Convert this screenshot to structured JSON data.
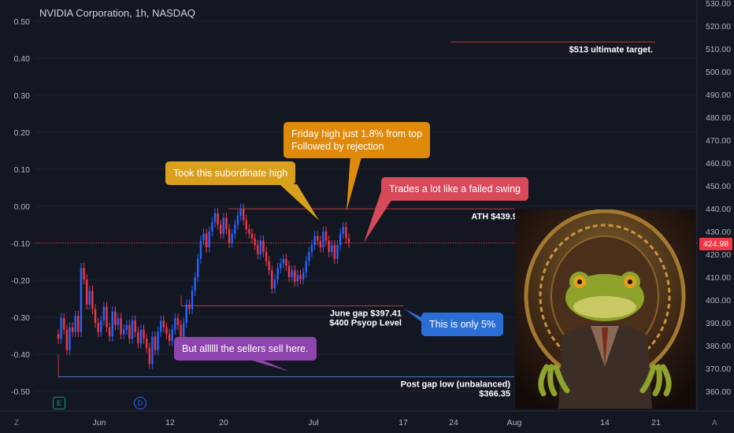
{
  "header": {
    "title": "NVIDIA Corporation, 1h, NASDAQ"
  },
  "colors": {
    "bg": "#131722",
    "up": "#2962ff",
    "down": "#f23645",
    "grid": "#1e222d"
  },
  "chart_data": {
    "type": "candlestick",
    "left_axis": {
      "ticks": [
        "0.50",
        "0.40",
        "0.30",
        "0.20",
        "0.10",
        "0.00",
        "-0.10",
        "-0.20",
        "-0.30",
        "-0.40",
        "-0.50"
      ]
    },
    "right_axis": {
      "ticks": [
        "530.00",
        "520.00",
        "510.00",
        "500.00",
        "490.00",
        "480.00",
        "470.00",
        "460.00",
        "450.00",
        "440.00",
        "430.00",
        "420.00",
        "410.00",
        "400.00",
        "390.00",
        "380.00",
        "370.00",
        "360.00"
      ],
      "ylim": [
        355,
        532
      ],
      "current_price": "424.98"
    },
    "x_axis": {
      "ticks": [
        "Jun",
        "12",
        "20",
        "Jul",
        "17",
        "24",
        "Aug",
        "14",
        "21"
      ]
    },
    "series": [
      {
        "name": "price",
        "values": [
          383,
          392,
          387,
          378,
          388,
          386,
          393,
          386,
          414,
          409,
          398,
          404,
          396,
          390,
          386,
          391,
          397,
          388,
          384,
          395,
          389,
          392,
          385,
          387,
          389,
          383,
          391,
          386,
          381,
          387,
          383,
          379,
          372,
          384,
          378,
          386,
          391,
          388,
          385,
          382,
          387,
          392,
          389,
          384,
          390,
          398,
          396,
          404,
          410,
          418,
          426,
          429,
          423,
          430,
          434,
          438,
          433,
          429,
          436,
          431,
          425,
          429,
          433,
          437,
          440,
          435,
          431,
          429,
          427,
          424,
          420,
          426,
          421,
          417,
          413,
          405,
          409,
          414,
          416,
          418,
          415,
          410,
          413,
          408,
          411,
          409,
          412,
          417,
          421,
          424,
          428,
          426,
          423,
          430,
          426,
          421,
          424,
          418,
          424,
          429,
          432,
          427,
          425
        ]
      }
    ],
    "levels": [
      {
        "label": "$513 ultimate target.",
        "value": 513
      },
      {
        "label": "ATH $439.90",
        "value": 439.9
      },
      {
        "label": "June gap $397.41",
        "value": 397.41
      },
      {
        "label": "$400 Psyop Level",
        "value": 400
      },
      {
        "label": "Post gap low (unbalanced)",
        "value": 366.35
      },
      {
        "label": "$366.35",
        "value": 366.35
      }
    ]
  },
  "callouts": {
    "subordinate": "Took this subordinate high",
    "friday_l1": "Friday high just 1.8% from top",
    "friday_l2": "Followed by rejection",
    "failed": "Trades a lot like a failed swing",
    "only5": "This is only 5%",
    "sellers": "But allllll the sellers sell here."
  },
  "events": {
    "earnings": "E",
    "dividend": "D"
  },
  "corners": {
    "left": "Z",
    "right": "A"
  }
}
